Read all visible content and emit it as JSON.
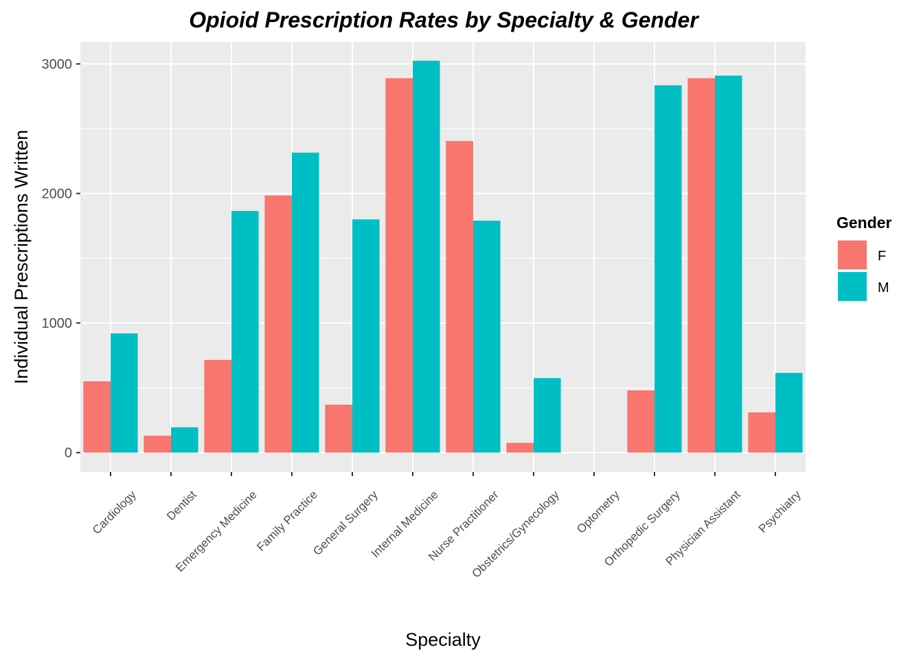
{
  "chart_data": {
    "type": "bar",
    "title": "Opioid Prescription Rates by Specialty & Gender",
    "xlabel": "Specialty",
    "ylabel": "Individual Prescriptions Written",
    "categories": [
      "Cardiology",
      "Dentist",
      "Emergency Medicine",
      "Family Practice",
      "General Surgery",
      "Internal Medicine",
      "Nurse Practitioner",
      "Obstetrics/Gynecology",
      "Optometry",
      "Orthopedic Surgery",
      "Physician Assistant",
      "Psychiatry"
    ],
    "series": [
      {
        "name": "F",
        "color": "#F8766D",
        "values": [
          550,
          130,
          715,
          1985,
          370,
          2890,
          2405,
          75,
          0,
          480,
          2890,
          310
        ]
      },
      {
        "name": "M",
        "color": "#00BFC4",
        "values": [
          920,
          195,
          1865,
          2315,
          1800,
          3025,
          1790,
          575,
          0,
          2835,
          2910,
          615
        ]
      }
    ],
    "ylim": [
      -150,
      3170
    ],
    "yticks": [
      0,
      1000,
      2000,
      3000
    ],
    "ytick_labels": [
      "0",
      "1000",
      "2000",
      "3000"
    ],
    "grid": true,
    "legend": {
      "title": "Gender",
      "position": "right",
      "entries": [
        "F",
        "M"
      ]
    }
  }
}
